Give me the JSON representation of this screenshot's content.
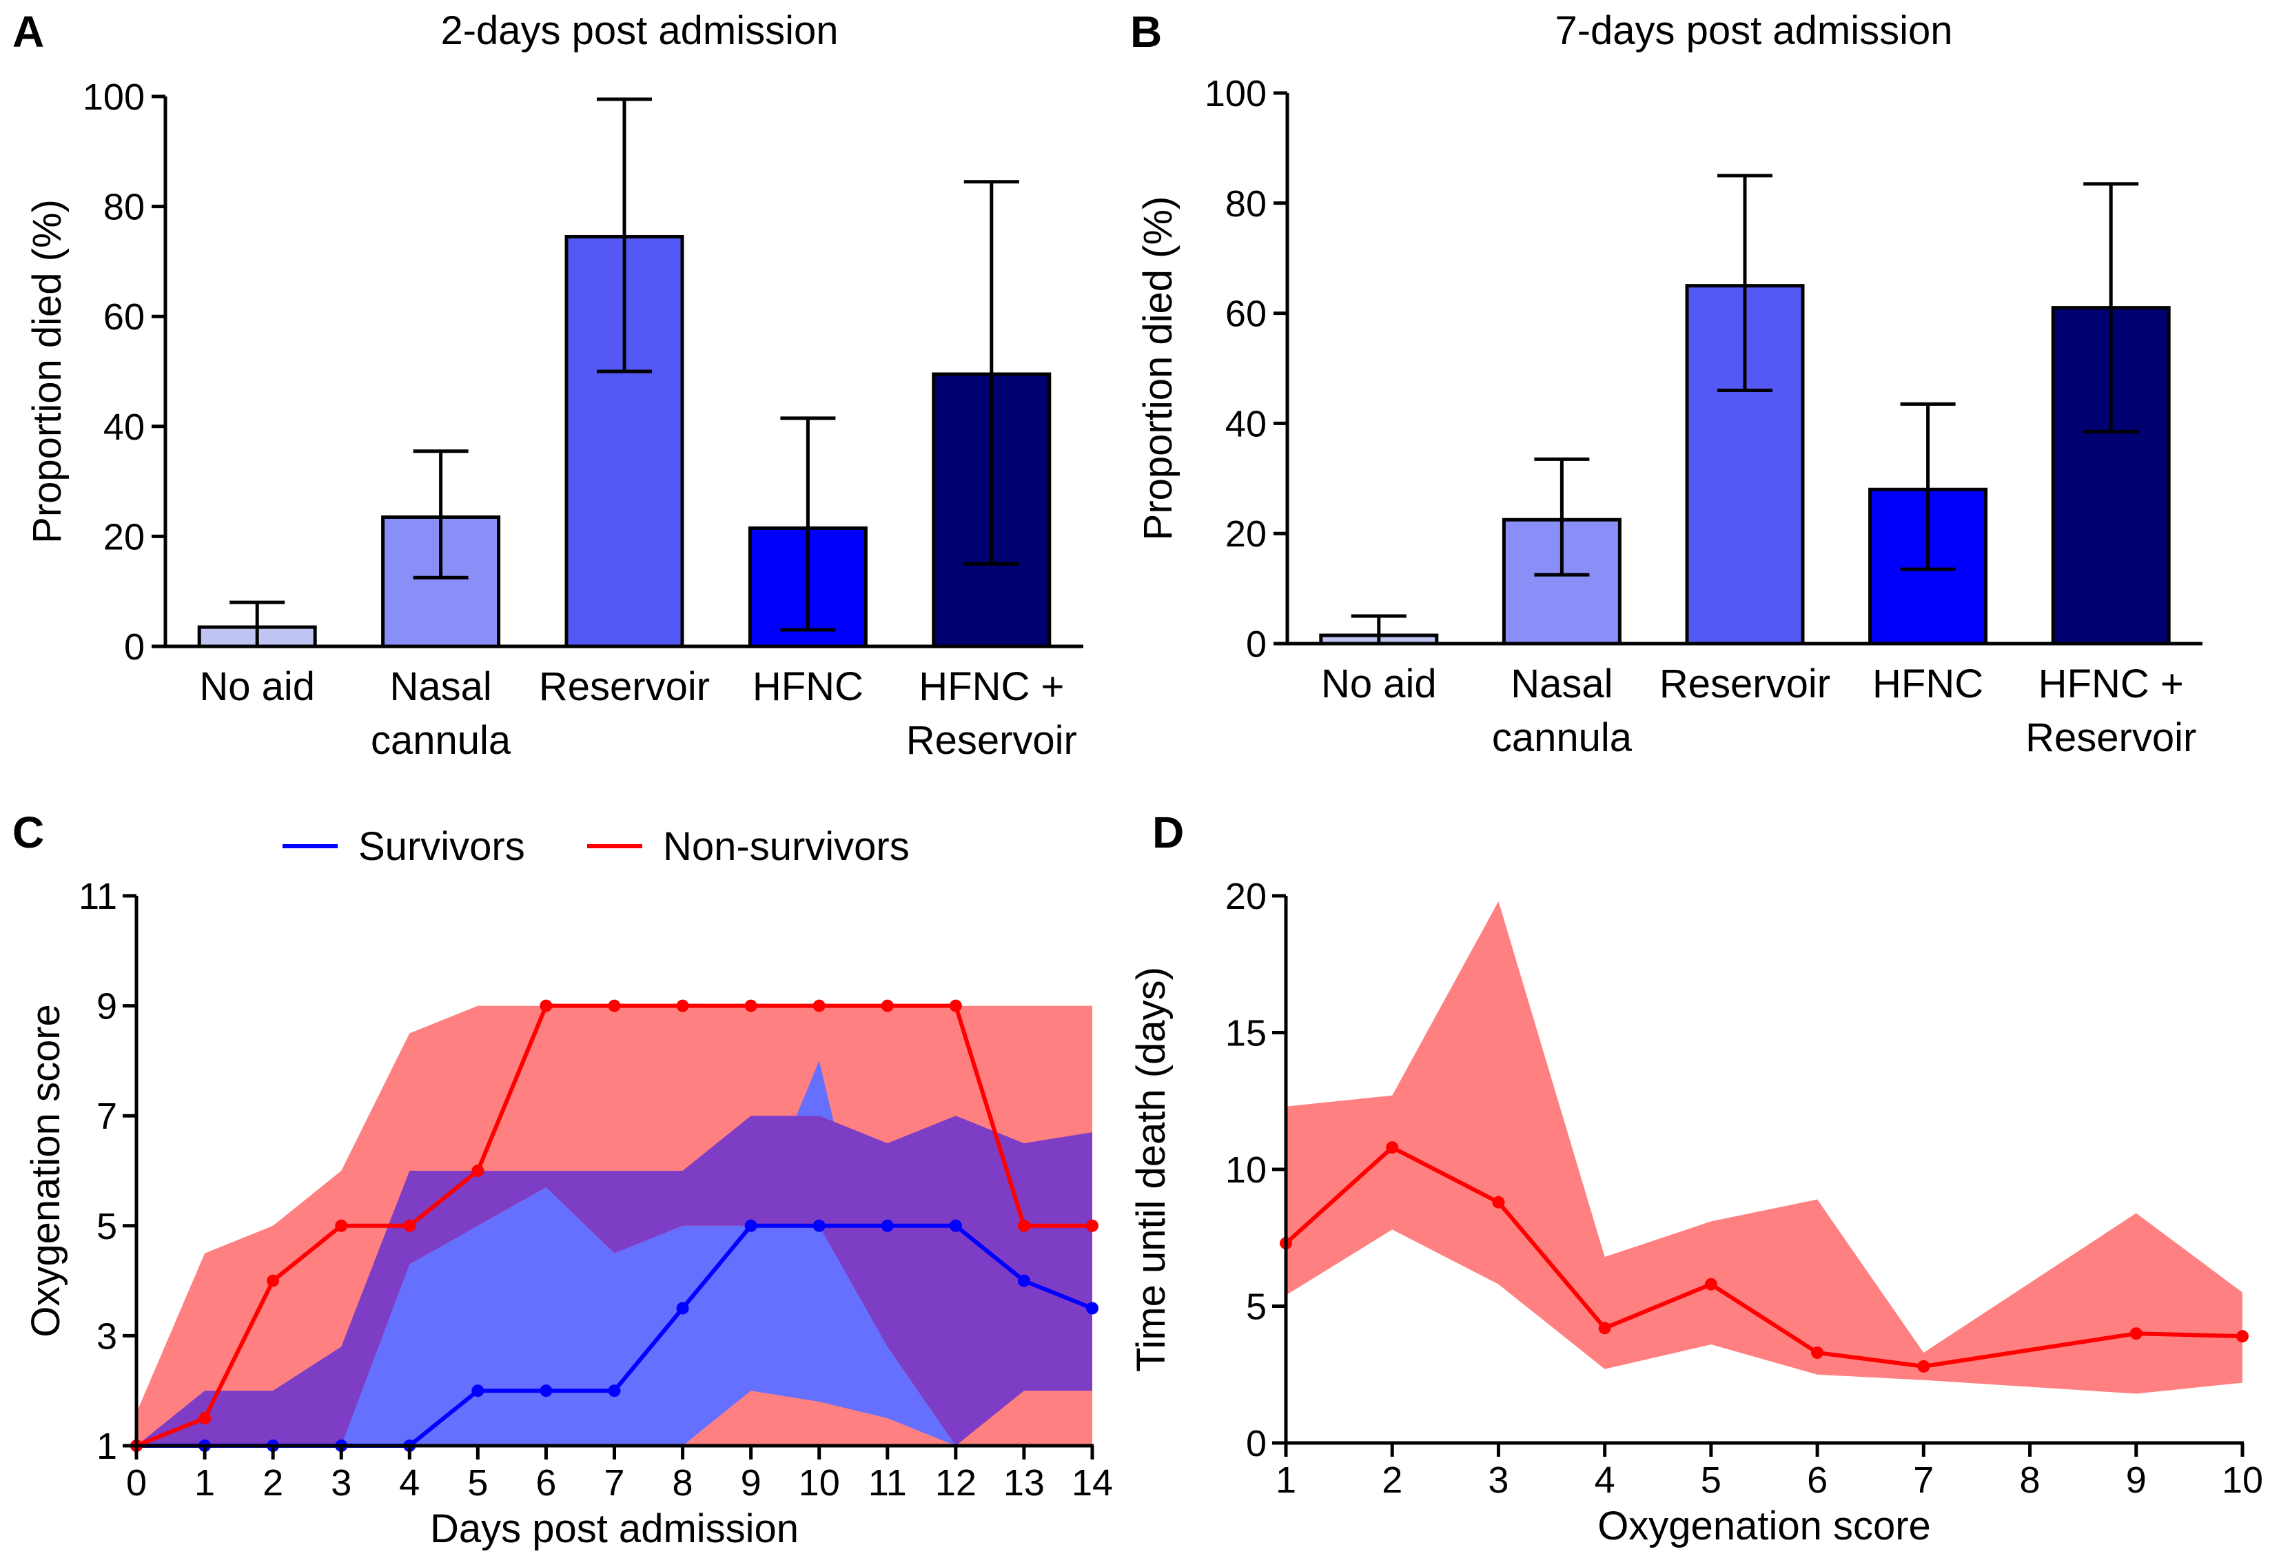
{
  "panels": {
    "A": {
      "letter": "A"
    },
    "B": {
      "letter": "B"
    },
    "C": {
      "letter": "C"
    },
    "D": {
      "letter": "D"
    }
  },
  "chart_data": [
    {
      "id": "A",
      "type": "bar",
      "title": "2-days post admission",
      "ylabel": "Proportion died (%)",
      "ylim": [
        0,
        100
      ],
      "yticks": [
        0,
        20,
        40,
        60,
        80,
        100
      ],
      "categories": [
        [
          "No aid"
        ],
        [
          "Nasal",
          "cannula"
        ],
        [
          "Reservoir"
        ],
        [
          "HFNC"
        ],
        [
          "HFNC +",
          "Reservoir"
        ]
      ],
      "values": [
        3.5,
        23.5,
        74.5,
        21.5,
        49.5
      ],
      "err_low": [
        0,
        12.5,
        50,
        3,
        15
      ],
      "err_high": [
        8,
        35.5,
        99.5,
        41.5,
        84.5
      ],
      "colors": [
        "#c0c4f2",
        "#8a8ff8",
        "#5459f5",
        "#0000fa",
        "#000071"
      ]
    },
    {
      "id": "B",
      "type": "bar",
      "title": "7-days post admission",
      "ylabel": "Proportion died (%)",
      "ylim": [
        0,
        100
      ],
      "yticks": [
        0,
        20,
        40,
        60,
        80,
        100
      ],
      "categories": [
        [
          "No aid"
        ],
        [
          "Nasal",
          "cannula"
        ],
        [
          "Reservoir"
        ],
        [
          "HFNC"
        ],
        [
          "HFNC +",
          "Reservoir"
        ]
      ],
      "values": [
        1.5,
        22.5,
        65,
        28,
        61
      ],
      "err_low": [
        0,
        12.5,
        46,
        13.5,
        38.5
      ],
      "err_high": [
        5,
        33.5,
        85,
        43.5,
        83.5
      ],
      "colors": [
        "#c0c4f2",
        "#8a8ff8",
        "#5459f5",
        "#0000fa",
        "#000071"
      ]
    },
    {
      "id": "C",
      "type": "line",
      "xlabel": "Days post admission",
      "ylabel": "Oxygenation score",
      "xlim": [
        0,
        14
      ],
      "ylim": [
        1,
        11
      ],
      "xticks": [
        0,
        1,
        2,
        3,
        4,
        5,
        6,
        7,
        8,
        9,
        10,
        11,
        12,
        13,
        14
      ],
      "yticks": [
        1,
        3,
        5,
        7,
        9,
        11
      ],
      "x": [
        0,
        1,
        2,
        3,
        4,
        5,
        6,
        7,
        8,
        9,
        10,
        11,
        12,
        13,
        14
      ],
      "series": [
        {
          "name": "Survivors",
          "color": "#0000ff",
          "band_color": "#6670ff",
          "values": [
            1,
            1,
            1,
            1,
            1,
            2,
            2,
            2,
            3.5,
            5,
            5,
            5,
            5,
            4,
            3.5
          ],
          "band_low": [
            1,
            1,
            1,
            1,
            1,
            1,
            1,
            1,
            1,
            2,
            1.8,
            1.5,
            1,
            1,
            1
          ],
          "band_high": [
            1,
            1.5,
            2,
            2.8,
            4.3,
            5,
            5.7,
            4.5,
            5,
            5,
            8,
            2.8,
            1,
            1,
            1
          ]
        },
        {
          "name": "Non-survivors",
          "color": "#ff0000",
          "band_color": "#ff8080",
          "values": [
            1,
            1.5,
            4,
            5,
            5,
            6,
            9,
            9,
            9,
            9,
            9,
            9,
            9,
            5,
            5
          ],
          "band_low": [
            1,
            1,
            1,
            1,
            1,
            1,
            1,
            1,
            1,
            1,
            1,
            1,
            1,
            1,
            1
          ],
          "band_high": [
            1.6,
            4.5,
            5,
            6,
            8.5,
            9,
            9,
            9,
            9,
            9,
            9,
            9,
            9,
            9,
            9
          ]
        }
      ],
      "overlap": {
        "color": "#7d3dc4",
        "low": [
          1,
          2,
          2,
          2.8,
          6,
          6,
          6,
          6,
          6,
          7,
          7,
          6.5,
          7,
          6.5,
          6.7
        ],
        "high": [
          1,
          2,
          2,
          2.8,
          6,
          6,
          6,
          6,
          6,
          7,
          7,
          6.5,
          7,
          6.5,
          6.7
        ],
        "low_edge": [
          1,
          1,
          1,
          1,
          4.3,
          5,
          5.7,
          4.5,
          5,
          5,
          5,
          2.8,
          1,
          2,
          2
        ]
      }
    },
    {
      "id": "D",
      "type": "line",
      "xlabel": "Oxygenation score",
      "ylabel": "Time until death (days)",
      "xlim": [
        1,
        10
      ],
      "ylim": [
        0,
        20
      ],
      "xticks": [
        1,
        2,
        3,
        4,
        5,
        6,
        7,
        8,
        9,
        10
      ],
      "yticks": [
        0,
        5,
        10,
        15,
        20
      ],
      "series": [
        {
          "name": "Non-survivors",
          "color": "#ff0000",
          "band_color": "#ff8080",
          "x": [
            1,
            2,
            3,
            4,
            5,
            6,
            7,
            9,
            10
          ],
          "values": [
            7.3,
            10.8,
            8.8,
            4.2,
            5.8,
            3.3,
            2.8,
            4,
            3.9
          ],
          "band_low": [
            5.4,
            7.8,
            5.8,
            2.7,
            3.6,
            2.5,
            2.3,
            1.8,
            2.2
          ],
          "band_high": [
            12.3,
            12.7,
            19.8,
            6.8,
            8.1,
            8.9,
            3.3,
            8.4,
            5.5
          ]
        }
      ]
    }
  ]
}
